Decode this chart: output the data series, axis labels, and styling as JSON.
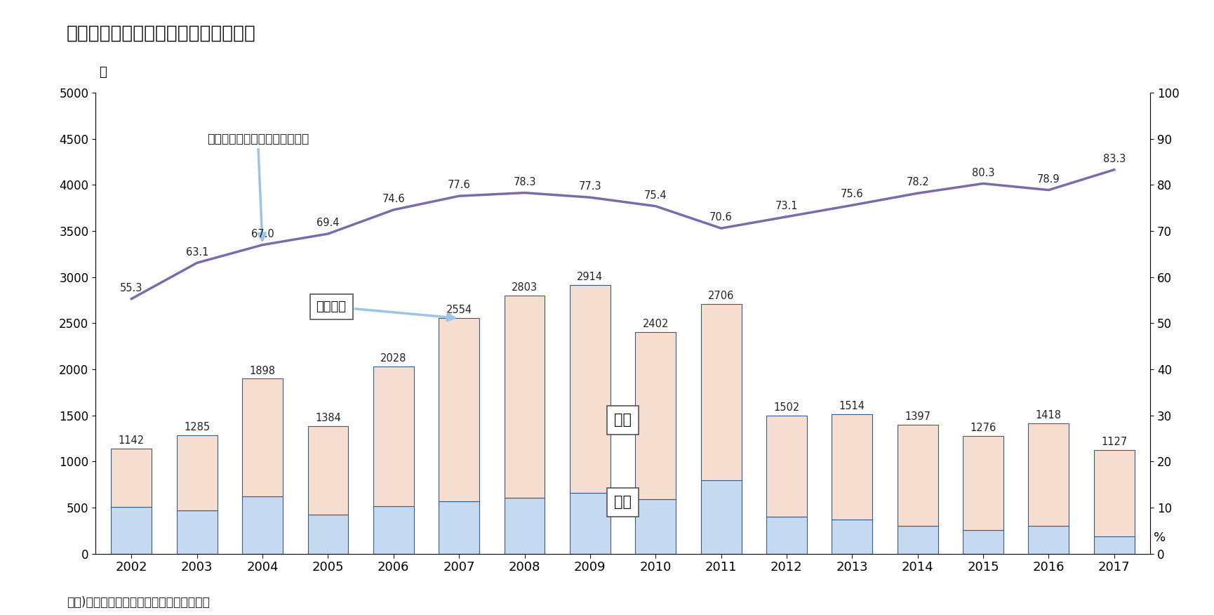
{
  "years": [
    2002,
    2003,
    2004,
    2005,
    2006,
    2007,
    2008,
    2009,
    2010,
    2011,
    2012,
    2013,
    2014,
    2015,
    2016,
    2017
  ],
  "total": [
    1142,
    1285,
    1898,
    1384,
    2028,
    2554,
    2803,
    2914,
    2402,
    2706,
    1502,
    1514,
    1397,
    1276,
    1418,
    1127
  ],
  "female": [
    631,
    811,
    1272,
    960,
    1513,
    1981,
    2195,
    2252,
    1811,
    1911,
    1098,
    1145,
    1092,
    1022,
    1116,
    939
  ],
  "male": [
    511,
    474,
    626,
    424,
    515,
    573,
    608,
    662,
    591,
    795,
    404,
    369,
    305,
    254,
    302,
    188
  ],
  "female_pct": [
    55.3,
    63.1,
    67.0,
    69.4,
    74.6,
    77.6,
    78.3,
    77.3,
    75.4,
    70.6,
    73.1,
    75.6,
    78.2,
    80.3,
    78.9,
    83.3
  ],
  "bar_female_color": "#F5DDD0",
  "bar_male_color": "#C5D9F0",
  "bar_edge_color": "#3A5A8A",
  "line_color": "#7B6BA8",
  "title": "図表２　韓国に入国する脱北者の推移",
  "ylabel_left": "人",
  "ylabel_right": "%",
  "ylim_left": [
    0,
    5000
  ],
  "ylim_right": [
    0,
    100
  ],
  "yticks_left": [
    0,
    500,
    1000,
    1500,
    2000,
    2500,
    3000,
    3500,
    4000,
    4500,
    5000
  ],
  "yticks_right": [
    0,
    10,
    20,
    30,
    40,
    50,
    60,
    70,
    80,
    90,
    100
  ],
  "annotation_line": "脱北者のうち女性が占める割合",
  "legend_total": "男女合計",
  "legend_female": "女性",
  "legend_male": "男性",
  "source_text": "資料)韓国統一部ホームページより筆者作成",
  "background_color": "#FFFFFF",
  "arrow_color": "#9DC3E6"
}
